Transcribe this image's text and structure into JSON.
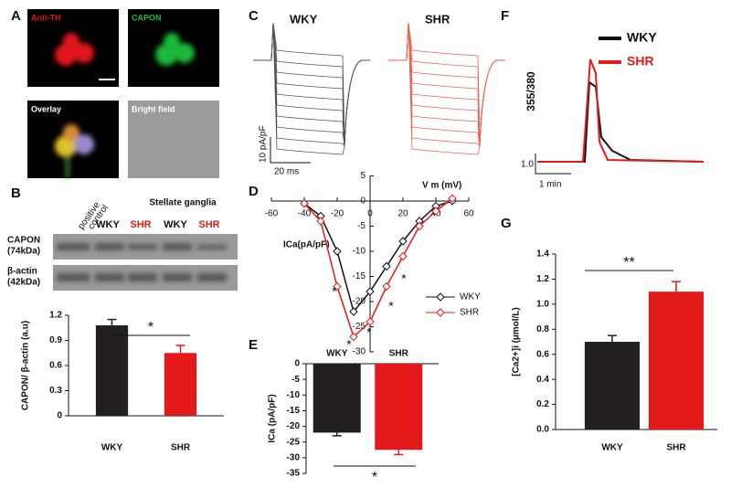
{
  "panels": [
    "A",
    "B",
    "C",
    "D",
    "E",
    "F",
    "G"
  ],
  "images": [
    "Anti-TH",
    "CAPON",
    "Overlay",
    "Bright field"
  ],
  "blot": {
    "control": [
      "positive",
      "control"
    ],
    "group": "Stellate ganglia",
    "lanes": [
      "WKY",
      "SHR",
      "WKY",
      "SHR"
    ],
    "lane_colors": [
      "#111111",
      "#e31a1c",
      "#111111",
      "#e31a1c"
    ],
    "rows": [
      [
        "CAPON",
        "(74kDa)"
      ],
      [
        "β-actin",
        "(42kDa)"
      ]
    ]
  },
  "traces_c": {
    "labels": [
      "WKY",
      "SHR"
    ],
    "scale_y": "10 pA/pF",
    "scale_x": "20 ms"
  },
  "traces_f": {
    "legend": [
      "WKY",
      "SHR"
    ],
    "colors": [
      "#111111",
      "#e31a1c"
    ],
    "ylabel": "355/380",
    "scale_y": "1.0",
    "scale_x": "1 min"
  },
  "chart_data": [
    {
      "type": "bar",
      "ylabel": "CAPON/ β-actin (a.u)",
      "categories": [
        "WKY",
        "SHR"
      ],
      "values": [
        1.08,
        0.75
      ],
      "errors": [
        0.07,
        0.09
      ],
      "colors": [
        "#231f20",
        "#e31a1c"
      ],
      "ylim": [
        0,
        1.2
      ],
      "yticks": [
        0,
        0.3,
        0.6,
        0.9,
        1.2
      ],
      "significance": "*"
    },
    {
      "type": "line",
      "xlabel": "V m  (mV)",
      "ylabel": "ICa(pA/pF)",
      "xlim": [
        -60,
        60
      ],
      "ylim": [
        -30,
        5
      ],
      "xticks": [
        -60,
        -40,
        -20,
        0,
        20,
        40,
        60
      ],
      "yticks": [
        5,
        0,
        -5,
        -10,
        -15,
        -20,
        -25,
        -30
      ],
      "x": [
        -40,
        -30,
        -20,
        -10,
        0,
        10,
        20,
        30,
        40,
        50
      ],
      "series": [
        {
          "name": "WKY",
          "color": "#111111",
          "values": [
            -0.5,
            -3,
            -10,
            -22,
            -18,
            -13,
            -8,
            -4,
            -1,
            0
          ]
        },
        {
          "name": "SHR",
          "color": "#e31a1c",
          "values": [
            -0.5,
            -4,
            -17,
            -27,
            -24,
            -17,
            -11,
            -5,
            -2,
            0.5
          ]
        }
      ],
      "annotations": [
        "*",
        "*",
        "*",
        "*",
        "*",
        "*"
      ]
    },
    {
      "type": "bar",
      "ylabel": "ICa  (pA/pF)",
      "categories": [
        "WKY",
        "SHR"
      ],
      "values": [
        -22,
        -27.5
      ],
      "errors": [
        1,
        1.5
      ],
      "colors": [
        "#231f20",
        "#e31a1c"
      ],
      "ylim": [
        -35,
        0
      ],
      "yticks": [
        0,
        -5,
        -10,
        -15,
        -20,
        -25,
        -30,
        -35
      ],
      "significance": "*"
    },
    {
      "type": "bar",
      "ylabel": "[Ca2+]i (µmol/L)",
      "categories": [
        "WKY",
        "SHR"
      ],
      "values": [
        0.7,
        1.1
      ],
      "errors": [
        0.05,
        0.08
      ],
      "colors": [
        "#231f20",
        "#e31a1c"
      ],
      "ylim": [
        0,
        1.4
      ],
      "yticks": [
        {
          "value": 0,
          "label": "0.0"
        },
        0.2,
        0.4,
        0.6,
        0.8,
        {
          "value": 1,
          "label": "1.0"
        },
        1.2,
        1.4
      ],
      "significance": "**"
    }
  ]
}
